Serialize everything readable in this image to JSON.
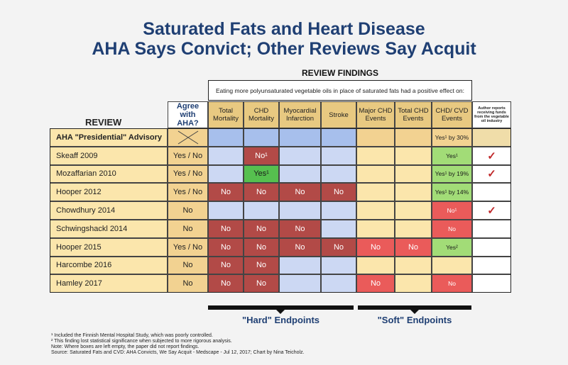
{
  "title_line1": "Saturated Fats and Heart Disease",
  "title_line2": "AHA Says Convict; Other Reviews Say Acquit",
  "review_findings_label": "REVIEW FINDINGS",
  "findings_note": "Eating more polyunsaturated vegetable oils in place of saturated fats had a positive effect on:",
  "review_label": "REVIEW",
  "columns": {
    "agree": "Agree with AHA?",
    "total_mortality": "Total Mortality",
    "chd_mortality": "CHD Mortality",
    "mi": "Myocardial Infarction",
    "stroke": "Stroke",
    "major_chd": "Major CHD Events",
    "total_chd": "Total CHD Events",
    "chd_cvd": "CHD/ CVD Events",
    "funding": "Author reports receiving funds from the vegetable oil industry"
  },
  "chart_data": {
    "type": "table",
    "colors": {
      "hard_blue": "#ccd8f3",
      "no_red": "#b24a47",
      "no_red_bright": "#ea5b5a",
      "yes_green": "#56c04f",
      "yes_light_green": "#a2dc77",
      "soft_yellow": "#fbe6ac",
      "check_red": "#c0282a",
      "title_blue": "#1f3f73"
    },
    "rows": [
      {
        "name": "AHA \"Presidential\" Advisory",
        "agree": "",
        "total_mortality": "",
        "chd_mortality": "",
        "mi": "",
        "stroke": "",
        "major_chd": "",
        "total_chd": "",
        "chd_cvd": "Yes¹ by 30%",
        "funding": ""
      },
      {
        "name": "Skeaff 2009",
        "agree": "Yes / No",
        "total_mortality": "",
        "chd_mortality": "No¹",
        "mi": "",
        "stroke": "",
        "major_chd": "",
        "total_chd": "",
        "chd_cvd": "Yes¹",
        "funding": "✓"
      },
      {
        "name": "Mozaffarian 2010",
        "agree": "Yes / No",
        "total_mortality": "",
        "chd_mortality": "Yes¹",
        "mi": "",
        "stroke": "",
        "major_chd": "",
        "total_chd": "",
        "chd_cvd": "Yes¹ by 19%",
        "funding": "✓"
      },
      {
        "name": "Hooper 2012",
        "agree": "Yes / No",
        "total_mortality": "No",
        "chd_mortality": "No",
        "mi": "No",
        "stroke": "No",
        "major_chd": "",
        "total_chd": "",
        "chd_cvd": "Yes¹ by 14%",
        "funding": ""
      },
      {
        "name": "Chowdhury 2014",
        "agree": "No",
        "total_mortality": "",
        "chd_mortality": "",
        "mi": "",
        "stroke": "",
        "major_chd": "",
        "total_chd": "",
        "chd_cvd": "No¹",
        "funding": "✓"
      },
      {
        "name": "Schwingshackl 2014",
        "agree": "No",
        "total_mortality": "No",
        "chd_mortality": "No",
        "mi": "No",
        "stroke": "",
        "major_chd": "",
        "total_chd": "",
        "chd_cvd": "No",
        "funding": ""
      },
      {
        "name": "Hooper 2015",
        "agree": "Yes / No",
        "total_mortality": "No",
        "chd_mortality": "No",
        "mi": "No",
        "stroke": "No",
        "major_chd": "No",
        "total_chd": "No",
        "chd_cvd": "Yes²",
        "funding": ""
      },
      {
        "name": "Harcombe 2016",
        "agree": "No",
        "total_mortality": "No",
        "chd_mortality": "No",
        "mi": "",
        "stroke": "",
        "major_chd": "",
        "total_chd": "",
        "chd_cvd": "",
        "funding": ""
      },
      {
        "name": "Hamley 2017",
        "agree": "No",
        "total_mortality": "No",
        "chd_mortality": "No",
        "mi": "",
        "stroke": "",
        "major_chd": "No",
        "total_chd": "",
        "chd_cvd": "No",
        "funding": ""
      }
    ]
  },
  "hard_endpoints_label": "\"Hard\" Endpoints",
  "soft_endpoints_label": "\"Soft\" Endpoints",
  "footnotes": [
    "¹ Included the Finnish Mental Hospital Study, which was poorly controlled.",
    "² This finding lost statistical significance when subjected to more rigorous analysis.",
    "Note: Where boxes are left empty, the paper did not report findings.",
    "Source: Saturated Fats and CVD: AHA Convicts, We Say Acquit - Medscape - Jul 12, 2017; Chart by Nina Teicholz."
  ]
}
